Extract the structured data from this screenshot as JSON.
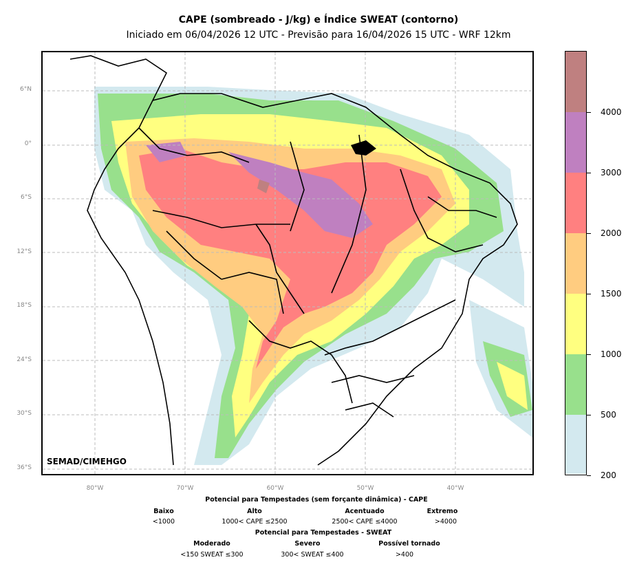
{
  "title": "CAPE (sombreado - J/kg) e Índice SWEAT (contorno)",
  "subtitle": "Iniciado em 06/04/2026 12 UTC - Previsão para 16/04/2026 15 UTC - WRF 12km",
  "credit": "SEMAD/CIMEHGO",
  "lat_labels": [
    "6°N",
    "0°",
    "6°S",
    "12°S",
    "18°S",
    "24°S",
    "30°S",
    "36°S"
  ],
  "lon_labels": [
    "80°W",
    "70°W",
    "60°W",
    "50°W",
    "40°W"
  ],
  "colorbar": {
    "ticks": [
      "200",
      "500",
      "1000",
      "1500",
      "2000",
      "3000",
      "4000"
    ],
    "colors": [
      "#d3e9ef",
      "#98e08c",
      "#ffff80",
      "#ffcc80",
      "#ff8080",
      "#bf80c0",
      "#bf8080"
    ]
  },
  "legend": {
    "cape_title": "Potencial para Tempestades (sem forçante dinâmica) - CAPE",
    "cape_levels": [
      {
        "name": "Baixo",
        "range": "<1000"
      },
      {
        "name": "Alto",
        "range": "1000< CAPE ≤2500"
      },
      {
        "name": "Acentuado",
        "range": "2500< CAPE ≤4000"
      },
      {
        "name": "Extremo",
        "range": ">4000"
      }
    ],
    "sweat_title": "Potencial para Tempestades - SWEAT",
    "sweat_levels": [
      {
        "name": "Moderado",
        "range": "<150 SWEAT ≤300"
      },
      {
        "name": "Severo",
        "range": "300< SWEAT ≤400"
      },
      {
        "name": "Possível tornado",
        "range": ">400"
      }
    ]
  }
}
